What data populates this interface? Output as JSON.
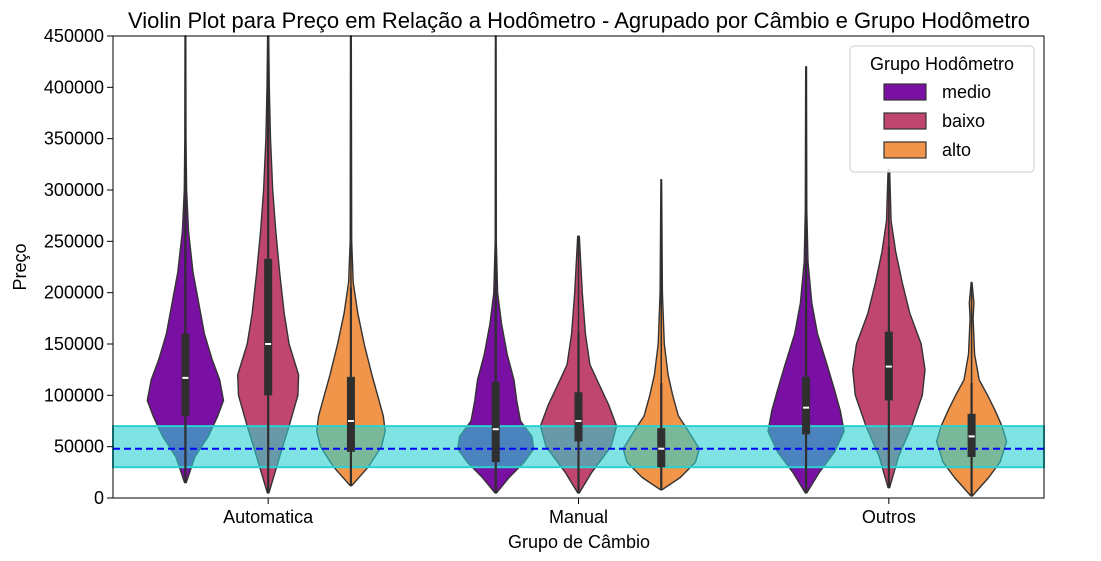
{
  "chart_data": {
    "type": "violin",
    "title": "Violin Plot para Preço em Relação a Hodômetro - Agrupado por Câmbio e Grupo Hodômetro",
    "xlabel": "Grupo de Câmbio",
    "ylabel": "Preço",
    "ylim": [
      0,
      450000
    ],
    "yticks": [
      0,
      50000,
      100000,
      150000,
      200000,
      250000,
      300000,
      350000,
      400000,
      450000
    ],
    "yticklabels": [
      "0",
      "50000",
      "100000",
      "150000",
      "200000",
      "250000",
      "300000",
      "350000",
      "400000",
      "450000"
    ],
    "categories": [
      "Automatica",
      "Manual",
      "Outros"
    ],
    "legend": {
      "title": "Grupo Hodômetro",
      "placement": "top-right",
      "entries": [
        "medio",
        "baixo",
        "alto"
      ]
    },
    "series": [
      {
        "name": "medio",
        "color": "#7a0fa3",
        "groups": [
          {
            "category": "Automatica",
            "min": 15000,
            "max": 450000,
            "q1": 80000,
            "median": 117000,
            "q3": 160000,
            "whisker_low": 15000,
            "whisker_high": 290000,
            "profile": [
              [
                15000,
                0.02
              ],
              [
                40000,
                0.25
              ],
              [
                60000,
                0.6
              ],
              [
                80000,
                0.85
              ],
              [
                95000,
                1.0
              ],
              [
                115000,
                0.9
              ],
              [
                135000,
                0.7
              ],
              [
                160000,
                0.5
              ],
              [
                190000,
                0.35
              ],
              [
                220000,
                0.2
              ],
              [
                260000,
                0.08
              ],
              [
                300000,
                0.03
              ],
              [
                350000,
                0.015
              ],
              [
                450000,
                0.01
              ]
            ]
          },
          {
            "category": "Manual",
            "min": 5000,
            "max": 450000,
            "q1": 35000,
            "median": 67000,
            "q3": 113000,
            "whisker_low": 5000,
            "whisker_high": 205000,
            "profile": [
              [
                5000,
                0.02
              ],
              [
                20000,
                0.35
              ],
              [
                35000,
                0.75
              ],
              [
                48000,
                1.0
              ],
              [
                60000,
                0.95
              ],
              [
                75000,
                0.65
              ],
              [
                95000,
                0.55
              ],
              [
                115000,
                0.48
              ],
              [
                140000,
                0.3
              ],
              [
                170000,
                0.15
              ],
              [
                200000,
                0.05
              ],
              [
                250000,
                0.015
              ],
              [
                450000,
                0.01
              ]
            ]
          },
          {
            "category": "Outros",
            "min": 5000,
            "max": 420000,
            "q1": 62000,
            "median": 88000,
            "q3": 118000,
            "whisker_low": 5000,
            "whisker_high": 230000,
            "profile": [
              [
                5000,
                0.02
              ],
              [
                25000,
                0.35
              ],
              [
                45000,
                0.75
              ],
              [
                65000,
                1.0
              ],
              [
                85000,
                0.9
              ],
              [
                105000,
                0.75
              ],
              [
                130000,
                0.55
              ],
              [
                160000,
                0.3
              ],
              [
                190000,
                0.15
              ],
              [
                230000,
                0.05
              ],
              [
                280000,
                0.02
              ],
              [
                420000,
                0.01
              ]
            ]
          }
        ]
      },
      {
        "name": "baixo",
        "color": "#c0466f",
        "groups": [
          {
            "category": "Automatica",
            "min": 5000,
            "max": 450000,
            "q1": 100000,
            "median": 150000,
            "q3": 233000,
            "whisker_low": 5000,
            "whisker_high": 425000,
            "profile": [
              [
                5000,
                0.02
              ],
              [
                40000,
                0.3
              ],
              [
                70000,
                0.55
              ],
              [
                100000,
                0.78
              ],
              [
                120000,
                0.8
              ],
              [
                150000,
                0.55
              ],
              [
                180000,
                0.42
              ],
              [
                220000,
                0.3
              ],
              [
                260000,
                0.2
              ],
              [
                300000,
                0.12
              ],
              [
                350000,
                0.06
              ],
              [
                400000,
                0.03
              ],
              [
                450000,
                0.015
              ]
            ]
          },
          {
            "category": "Manual",
            "min": 5000,
            "max": 255000,
            "q1": 55000,
            "median": 75000,
            "q3": 103000,
            "whisker_low": 5000,
            "whisker_high": 162000,
            "profile": [
              [
                5000,
                0.02
              ],
              [
                25000,
                0.35
              ],
              [
                50000,
                0.85
              ],
              [
                70000,
                1.0
              ],
              [
                90000,
                0.8
              ],
              [
                110000,
                0.55
              ],
              [
                130000,
                0.3
              ],
              [
                160000,
                0.18
              ],
              [
                200000,
                0.1
              ],
              [
                255000,
                0.02
              ]
            ]
          },
          {
            "category": "Outros",
            "min": 10000,
            "max": 320000,
            "q1": 95000,
            "median": 128000,
            "q3": 162000,
            "whisker_low": 10000,
            "whisker_high": 245000,
            "profile": [
              [
                10000,
                0.02
              ],
              [
                40000,
                0.25
              ],
              [
                70000,
                0.6
              ],
              [
                100000,
                0.88
              ],
              [
                125000,
                0.95
              ],
              [
                150000,
                0.85
              ],
              [
                180000,
                0.55
              ],
              [
                210000,
                0.35
              ],
              [
                240000,
                0.18
              ],
              [
                270000,
                0.06
              ],
              [
                320000,
                0.02
              ]
            ]
          }
        ]
      },
      {
        "name": "alto",
        "color": "#f0954a",
        "groups": [
          {
            "category": "Automatica",
            "min": 12000,
            "max": 450000,
            "q1": 45000,
            "median": 75000,
            "q3": 118000,
            "whisker_low": 12000,
            "whisker_high": 205000,
            "profile": [
              [
                12000,
                0.02
              ],
              [
                30000,
                0.45
              ],
              [
                50000,
                0.8
              ],
              [
                65000,
                0.9
              ],
              [
                80000,
                0.85
              ],
              [
                100000,
                0.7
              ],
              [
                120000,
                0.55
              ],
              [
                150000,
                0.35
              ],
              [
                180000,
                0.18
              ],
              [
                210000,
                0.06
              ],
              [
                250000,
                0.02
              ],
              [
                450000,
                0.01
              ]
            ]
          },
          {
            "category": "Manual",
            "min": 8000,
            "max": 310000,
            "q1": 30000,
            "median": 48000,
            "q3": 68000,
            "whisker_low": 8000,
            "whisker_high": 112000,
            "profile": [
              [
                8000,
                0.02
              ],
              [
                20000,
                0.5
              ],
              [
                35000,
                0.9
              ],
              [
                48000,
                1.0
              ],
              [
                60000,
                0.8
              ],
              [
                80000,
                0.45
              ],
              [
                100000,
                0.3
              ],
              [
                120000,
                0.18
              ],
              [
                150000,
                0.08
              ],
              [
                200000,
                0.03
              ],
              [
                310000,
                0.01
              ]
            ]
          },
          {
            "category": "Outros",
            "min": 2000,
            "max": 210000,
            "q1": 40000,
            "median": 60000,
            "q3": 82000,
            "whisker_low": 2000,
            "whisker_high": 112000,
            "profile": [
              [
                2000,
                0.02
              ],
              [
                20000,
                0.45
              ],
              [
                35000,
                0.75
              ],
              [
                55000,
                0.92
              ],
              [
                70000,
                0.8
              ],
              [
                85000,
                0.62
              ],
              [
                100000,
                0.42
              ],
              [
                115000,
                0.2
              ],
              [
                140000,
                0.08
              ],
              [
                175000,
                0.04
              ],
              [
                190000,
                0.06
              ],
              [
                210000,
                0.01
              ]
            ]
          }
        ]
      }
    ],
    "reference_band": {
      "y_low": 30000,
      "y_high": 70000,
      "color": "#2bd0d0"
    },
    "reference_line": {
      "y": 48000,
      "color": "#0000ff",
      "style": "dashed"
    },
    "grid": false
  }
}
